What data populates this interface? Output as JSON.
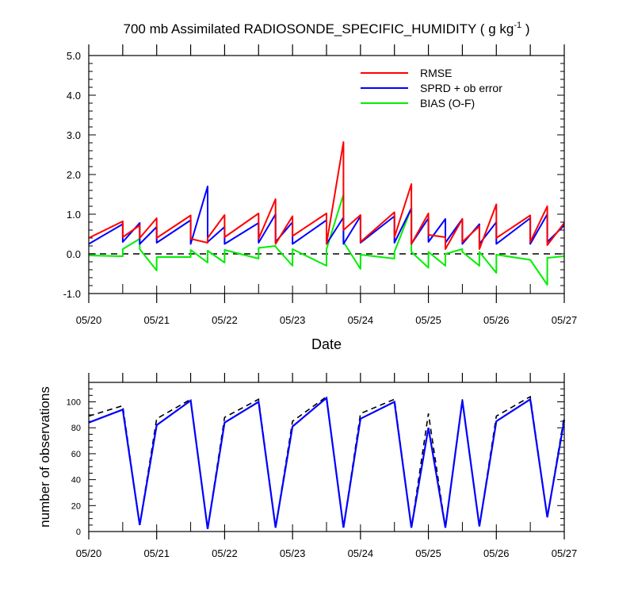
{
  "title": {
    "main": "700 mb Assimilated RADIOSONDE_SPECIFIC_HUMIDITY ( g kg",
    "superscript": "-1",
    "close": " )"
  },
  "colors": {
    "rmse": "#ff0000",
    "sprd": "#0000ff",
    "bias": "#00ee00",
    "reference": "#000000"
  },
  "chart_data": [
    {
      "type": "line",
      "xlabel": "Date",
      "x_tick_labels": [
        "05/20",
        "05/21",
        "05/22",
        "05/23",
        "05/24",
        "05/25",
        "05/26",
        "05/27"
      ],
      "xlim_days": [
        "05/20",
        "05/27"
      ],
      "ylim": [
        -1.0,
        5.0
      ],
      "y_tick_labels": [
        "-1.0",
        "0.0",
        "1.0",
        "2.0",
        "3.0",
        "4.0",
        "5.0"
      ],
      "reference_line": 0.0,
      "legend_position": "top-right",
      "legend": [
        "RMSE",
        "SPRD + ob error",
        "BIAS (O-F)"
      ],
      "x_dates": [
        "05/20 00",
        "05/20 12",
        "05/20 18",
        "05/21 00",
        "05/21 12",
        "05/21 18",
        "05/22 00",
        "05/22 12",
        "05/22 18",
        "05/23 00",
        "05/23 12",
        "05/23 18",
        "05/24 00",
        "05/24 12",
        "05/24 18",
        "05/25 00",
        "05/25 06",
        "05/25 12",
        "05/25 18",
        "05/26 00",
        "05/26 12",
        "05/26 18",
        "05/27 00"
      ],
      "series": [
        {
          "name": "RMSE",
          "segments": [
            {
              "x": [
                "05/20 00",
                "05/20 12",
                "05/20 12",
                "05/20 18",
                "05/20 18",
                "05/21 00",
                "05/21 00",
                "05/21 12",
                "05/21 12",
                "05/21 18",
                "05/21 18",
                "05/22 00",
                "05/22 00",
                "05/22 12",
                "05/22 12",
                "05/22 18",
                "05/22 18",
                "05/23 00",
                "05/23 00",
                "05/23 12",
                "05/23 12",
                "05/23 18",
                "05/23 18",
                "05/24 00",
                "05/24 00",
                "05/24 12",
                "05/24 12",
                "05/24 18",
                "05/24 18",
                "05/25 00",
                "05/25 00",
                "05/25 06",
                "05/25 06",
                "05/25 12",
                "05/25 12",
                "05/25 18",
                "05/25 18",
                "05/26 00",
                "05/26 00",
                "05/26 12",
                "05/26 12",
                "05/26 18",
                "05/26 18",
                "05/27 00"
              ],
              "y": [
                0.4,
                0.82,
                0.42,
                0.72,
                0.4,
                0.9,
                0.4,
                0.97,
                0.38,
                0.28,
                0.4,
                0.98,
                0.42,
                1.02,
                0.38,
                1.38,
                0.25,
                0.95,
                0.45,
                1.02,
                0.25,
                2.82,
                0.6,
                0.98,
                0.3,
                1.05,
                0.42,
                1.76,
                0.25,
                1.02,
                0.48,
                0.42,
                0.12,
                0.88,
                0.3,
                0.7,
                0.12,
                1.25,
                0.4,
                0.97,
                0.3,
                1.2,
                0.22,
                0.78
              ]
            }
          ]
        },
        {
          "name": "SPRD + ob error",
          "segments": [
            {
              "x": [
                "05/20 00",
                "05/20 12",
                "05/20 12",
                "05/20 18",
                "05/20 18",
                "05/21 00",
                "05/21 00",
                "05/21 12",
                "05/21 12",
                "05/21 18",
                "05/21 18",
                "05/22 00",
                "05/22 00",
                "05/22 12",
                "05/22 12",
                "05/22 18",
                "05/22 18",
                "05/23 00",
                "05/23 00",
                "05/23 12",
                "05/23 12",
                "05/23 18",
                "05/23 18",
                "05/24 00",
                "05/24 00",
                "05/24 12",
                "05/24 12",
                "05/24 18",
                "05/24 18",
                "05/25 00",
                "05/25 00",
                "05/25 06",
                "05/25 06",
                "05/25 12",
                "05/25 12",
                "05/25 18",
                "05/25 18",
                "05/26 00",
                "05/26 00",
                "05/26 12",
                "05/26 12",
                "05/26 18",
                "05/26 18",
                "05/27 00"
              ],
              "y": [
                0.25,
                0.75,
                0.3,
                0.78,
                0.25,
                0.68,
                0.28,
                0.85,
                0.25,
                1.7,
                0.3,
                0.68,
                0.25,
                0.78,
                0.28,
                1.0,
                0.3,
                0.8,
                0.25,
                0.85,
                0.25,
                0.92,
                0.25,
                0.95,
                0.28,
                0.95,
                0.28,
                1.15,
                0.25,
                0.9,
                0.3,
                0.88,
                0.28,
                0.88,
                0.25,
                0.75,
                0.25,
                0.8,
                0.25,
                0.9,
                0.25,
                1.0,
                0.3,
                0.72
              ]
            }
          ]
        },
        {
          "name": "BIAS (O-F)",
          "segments": [
            {
              "x": [
                "05/20 00",
                "05/20 12",
                "05/20 12",
                "05/20 18",
                "05/20 18",
                "05/21 00",
                "05/21 00",
                "05/21 12",
                "05/21 12",
                "05/21 18",
                "05/21 18",
                "05/22 00",
                "05/22 00",
                "05/22 12",
                "05/22 12",
                "05/22 18",
                "05/22 18",
                "05/23 00",
                "05/23 00",
                "05/23 12",
                "05/23 12",
                "05/23 18",
                "05/23 18",
                "05/24 00",
                "05/24 00",
                "05/24 12",
                "05/24 12",
                "05/24 18",
                "05/24 18",
                "05/25 00",
                "05/25 00",
                "05/25 06",
                "05/25 06",
                "05/25 12",
                "05/25 12",
                "05/25 18",
                "05/25 18",
                "05/26 00",
                "05/26 00",
                "05/26 12",
                "05/26 12",
                "05/26 18",
                "05/26 18",
                "05/27 00"
              ],
              "y": [
                -0.04,
                -0.06,
                0.12,
                0.38,
                0.12,
                -0.42,
                -0.08,
                -0.08,
                0.1,
                -0.22,
                0.08,
                -0.22,
                0.1,
                -0.12,
                0.15,
                0.2,
                0.18,
                -0.3,
                0.12,
                -0.3,
                0.12,
                1.5,
                0.3,
                -0.38,
                -0.02,
                -0.12,
                0.05,
                1.15,
                0.05,
                -0.35,
                0.05,
                -0.3,
                0.0,
                0.12,
                0.05,
                -0.3,
                0.05,
                -0.48,
                -0.02,
                -0.15,
                -0.15,
                -0.78,
                -0.1,
                -0.06
              ]
            }
          ]
        }
      ]
    },
    {
      "type": "line",
      "ylabel": "number of observations",
      "x_tick_labels": [
        "05/20",
        "05/21",
        "05/22",
        "05/23",
        "05/24",
        "05/25",
        "05/26",
        "05/27"
      ],
      "ylim": [
        0,
        115
      ],
      "y_tick_labels": [
        "0",
        "20",
        "40",
        "60",
        "80",
        "100"
      ],
      "x_dates": [
        "05/20 00",
        "05/20 12",
        "05/20 18",
        "05/21 00",
        "05/21 12",
        "05/21 18",
        "05/22 00",
        "05/22 12",
        "05/22 18",
        "05/23 00",
        "05/23 12",
        "05/23 18",
        "05/24 00",
        "05/24 12",
        "05/24 18",
        "05/25 00",
        "05/25 06",
        "05/25 12",
        "05/25 18",
        "05/26 00",
        "05/26 12",
        "05/26 18",
        "05/27 00"
      ],
      "series": [
        {
          "style": "solid-blue",
          "values": [
            84,
            94,
            5,
            82,
            101,
            2,
            84,
            100,
            3,
            81,
            103,
            3,
            87,
            100,
            3,
            80,
            3,
            101,
            4,
            85,
            102,
            11,
            86
          ]
        },
        {
          "style": "dashed-black",
          "values": [
            89,
            97,
            5,
            87,
            102,
            2,
            88,
            102,
            3,
            85,
            104,
            3,
            91,
            102,
            3,
            91,
            3,
            102,
            4,
            89,
            104,
            11,
            89
          ]
        }
      ]
    }
  ]
}
